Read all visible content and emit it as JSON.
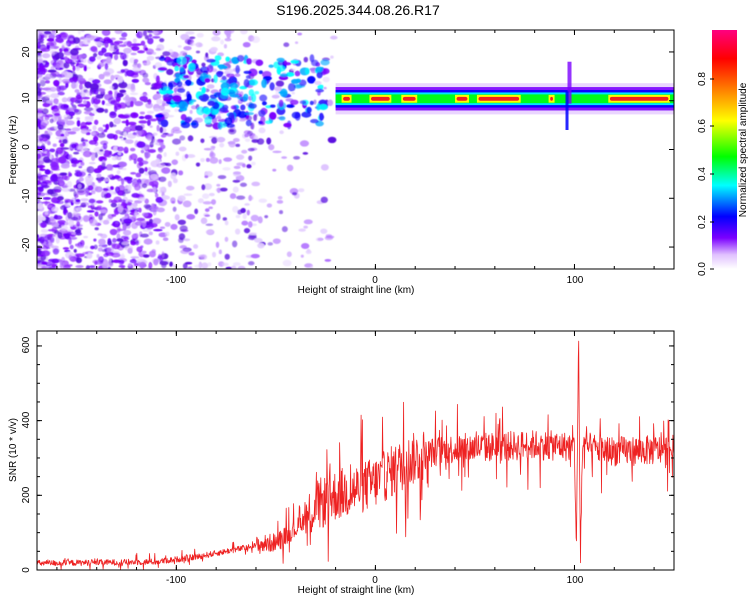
{
  "figure_title": "S196.2025.344.08.26.R17",
  "chart_data": [
    {
      "type": "heatmap",
      "xlabel": "Height of straight line (km)",
      "ylabel": "Frequency (Hz)",
      "xlim": [
        -170,
        150
      ],
      "ylim": [
        -24.5,
        24.5
      ],
      "xticks": [
        -100,
        0,
        100
      ],
      "yticks": [
        -20,
        -10,
        0,
        10,
        20
      ],
      "xtick_labels": [
        "-100",
        "0",
        "100"
      ],
      "ytick_labels": [
        "-20",
        "-10",
        "0",
        "10",
        "20"
      ],
      "colorbar": {
        "label": "Normalized spectral amplitude",
        "range": [
          0,
          1
        ],
        "ticks": [
          0.0,
          0.2,
          0.4,
          0.6,
          0.8
        ],
        "tick_labels": [
          "0.0",
          "0.2",
          "0.4",
          "0.6",
          "0.8"
        ],
        "colormap": [
          "#ffffff",
          "#7b00ff",
          "#0000ff",
          "#00ffff",
          "#00ff00",
          "#ffff00",
          "#ff8000",
          "#ff0000",
          "#ff0080"
        ]
      },
      "carrier_frequency_hz": 10.4,
      "carrier_onset_km": -110,
      "noise_region_km": [
        -170,
        -20
      ],
      "spikes_km": [
        -35,
        95
      ]
    },
    {
      "type": "line",
      "xlabel": "Height of straight line (km)",
      "ylabel": "SNR (10 * v/v)",
      "xlim": [
        -170,
        150
      ],
      "ylim": [
        0,
        640
      ],
      "xticks": [
        -100,
        0,
        100
      ],
      "yticks": [
        0,
        200,
        400,
        600
      ],
      "xtick_labels": [
        "-100",
        "0",
        "100"
      ],
      "ytick_labels": [
        "0",
        "200",
        "400",
        "600"
      ],
      "series": [
        {
          "name": "SNR",
          "color": "#ee2222",
          "x": [
            -170,
            -140,
            -110,
            -90,
            -70,
            -50,
            -40,
            -30,
            -20,
            -10,
            0,
            10,
            20,
            30,
            40,
            60,
            80,
            100,
            101,
            102,
            103,
            104,
            120,
            150
          ],
          "values": [
            18,
            20,
            22,
            35,
            55,
            75,
            110,
            170,
            200,
            215,
            235,
            270,
            300,
            318,
            325,
            330,
            335,
            330,
            50,
            620,
            40,
            330,
            318,
            322
          ]
        }
      ]
    }
  ]
}
